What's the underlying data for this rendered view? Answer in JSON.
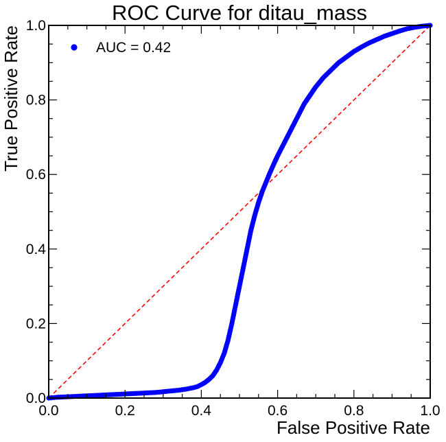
{
  "chart_data": {
    "type": "scatter",
    "title": "ROC Curve for ditau_mass",
    "xlabel": "False Positive Rate",
    "ylabel": "True Positive Rate",
    "xlim": [
      0.0,
      1.0
    ],
    "ylim": [
      0.0,
      1.0
    ],
    "x_ticks": [
      "0.0",
      "0.2",
      "0.4",
      "0.6",
      "0.8",
      "1.0"
    ],
    "y_ticks": [
      "0.0",
      "0.2",
      "0.4",
      "0.6",
      "0.8",
      "1.0"
    ],
    "grid": false,
    "legend_position": "top-left",
    "series": [
      {
        "name": "AUC = 0.42",
        "color": "#0000ff",
        "marker": "circle",
        "points": [
          [
            0.0,
            0.0
          ],
          [
            0.02,
            0.002
          ],
          [
            0.04,
            0.003
          ],
          [
            0.06,
            0.004
          ],
          [
            0.08,
            0.005
          ],
          [
            0.1,
            0.006
          ],
          [
            0.12,
            0.007
          ],
          [
            0.14,
            0.008
          ],
          [
            0.16,
            0.009
          ],
          [
            0.18,
            0.01
          ],
          [
            0.2,
            0.011
          ],
          [
            0.22,
            0.012
          ],
          [
            0.24,
            0.013
          ],
          [
            0.26,
            0.014
          ],
          [
            0.28,
            0.015
          ],
          [
            0.3,
            0.017
          ],
          [
            0.32,
            0.019
          ],
          [
            0.34,
            0.021
          ],
          [
            0.36,
            0.024
          ],
          [
            0.38,
            0.028
          ],
          [
            0.39,
            0.031
          ],
          [
            0.4,
            0.036
          ],
          [
            0.41,
            0.042
          ],
          [
            0.42,
            0.05
          ],
          [
            0.43,
            0.06
          ],
          [
            0.44,
            0.075
          ],
          [
            0.45,
            0.095
          ],
          [
            0.46,
            0.12
          ],
          [
            0.47,
            0.155
          ],
          [
            0.48,
            0.2
          ],
          [
            0.49,
            0.25
          ],
          [
            0.5,
            0.3
          ],
          [
            0.51,
            0.35
          ],
          [
            0.52,
            0.4
          ],
          [
            0.53,
            0.45
          ],
          [
            0.54,
            0.49
          ],
          [
            0.55,
            0.525
          ],
          [
            0.56,
            0.555
          ],
          [
            0.57,
            0.58
          ],
          [
            0.58,
            0.605
          ],
          [
            0.59,
            0.628
          ],
          [
            0.6,
            0.65
          ],
          [
            0.61,
            0.67
          ],
          [
            0.62,
            0.69
          ],
          [
            0.63,
            0.71
          ],
          [
            0.64,
            0.73
          ],
          [
            0.65,
            0.75
          ],
          [
            0.66,
            0.77
          ],
          [
            0.67,
            0.79
          ],
          [
            0.68,
            0.805
          ],
          [
            0.69,
            0.82
          ],
          [
            0.7,
            0.835
          ],
          [
            0.72,
            0.86
          ],
          [
            0.74,
            0.88
          ],
          [
            0.76,
            0.9
          ],
          [
            0.78,
            0.915
          ],
          [
            0.8,
            0.93
          ],
          [
            0.82,
            0.942
          ],
          [
            0.84,
            0.953
          ],
          [
            0.86,
            0.962
          ],
          [
            0.88,
            0.971
          ],
          [
            0.9,
            0.978
          ],
          [
            0.92,
            0.985
          ],
          [
            0.94,
            0.991
          ],
          [
            0.96,
            0.995
          ],
          [
            0.98,
            0.998
          ],
          [
            1.0,
            1.0
          ]
        ]
      },
      {
        "name": "",
        "color": "#ff0000",
        "style": "dashed",
        "points": [
          [
            0.0,
            0.0
          ],
          [
            1.0,
            1.0
          ]
        ]
      }
    ]
  }
}
